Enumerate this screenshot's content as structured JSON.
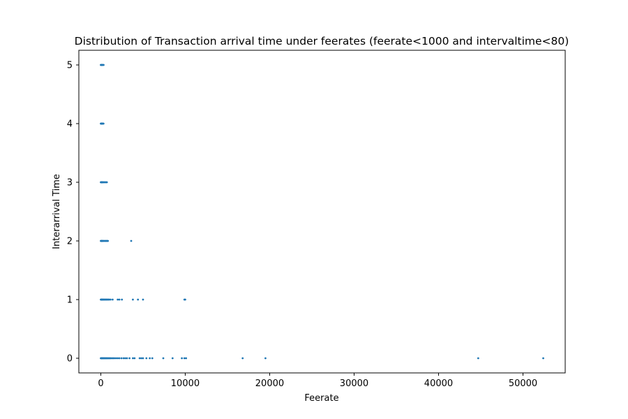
{
  "chart_data": {
    "type": "scatter",
    "title": "Distribution of Transaction arrival time under feerates (feerate<1000 and intervaltime<80)",
    "xlabel": "Feerate",
    "ylabel": "Interarrival Time",
    "xlim": [
      -2600,
      55000
    ],
    "ylim": [
      -0.25,
      5.25
    ],
    "xticks": [
      0,
      10000,
      20000,
      30000,
      40000,
      50000
    ],
    "yticks": [
      0,
      1,
      2,
      3,
      4,
      5
    ],
    "grid": false,
    "color": "#1f77b4",
    "series": [
      {
        "points": [
          [
            0,
            5
          ],
          [
            40,
            5
          ],
          [
            80,
            5
          ],
          [
            120,
            5
          ],
          [
            160,
            5
          ],
          [
            200,
            5
          ],
          [
            260,
            5
          ],
          [
            330,
            5
          ],
          [
            0,
            4
          ],
          [
            40,
            4
          ],
          [
            80,
            4
          ],
          [
            120,
            4
          ],
          [
            160,
            4
          ],
          [
            200,
            4
          ],
          [
            260,
            4
          ],
          [
            320,
            4
          ],
          [
            0,
            3
          ],
          [
            40,
            3
          ],
          [
            80,
            3
          ],
          [
            120,
            3
          ],
          [
            160,
            3
          ],
          [
            200,
            3
          ],
          [
            260,
            3
          ],
          [
            330,
            3
          ],
          [
            420,
            3
          ],
          [
            520,
            3
          ],
          [
            620,
            3
          ],
          [
            720,
            3
          ],
          [
            0,
            2
          ],
          [
            40,
            2
          ],
          [
            80,
            2
          ],
          [
            120,
            2
          ],
          [
            160,
            2
          ],
          [
            200,
            2
          ],
          [
            260,
            2
          ],
          [
            330,
            2
          ],
          [
            420,
            2
          ],
          [
            520,
            2
          ],
          [
            600,
            2
          ],
          [
            680,
            2
          ],
          [
            760,
            2
          ],
          [
            840,
            2
          ],
          [
            3600,
            2
          ],
          [
            0,
            1
          ],
          [
            50,
            1
          ],
          [
            100,
            1
          ],
          [
            150,
            1
          ],
          [
            200,
            1
          ],
          [
            260,
            1
          ],
          [
            330,
            1
          ],
          [
            400,
            1
          ],
          [
            480,
            1
          ],
          [
            560,
            1
          ],
          [
            640,
            1
          ],
          [
            720,
            1
          ],
          [
            800,
            1
          ],
          [
            900,
            1
          ],
          [
            1000,
            1
          ],
          [
            1150,
            1
          ],
          [
            1400,
            1
          ],
          [
            2000,
            1
          ],
          [
            2200,
            1
          ],
          [
            2500,
            1
          ],
          [
            3800,
            1
          ],
          [
            4400,
            1
          ],
          [
            5000,
            1
          ],
          [
            9900,
            1
          ],
          [
            10000,
            1
          ],
          [
            0,
            0
          ],
          [
            60,
            0
          ],
          [
            120,
            0
          ],
          [
            180,
            0
          ],
          [
            240,
            0
          ],
          [
            300,
            0
          ],
          [
            370,
            0
          ],
          [
            440,
            0
          ],
          [
            520,
            0
          ],
          [
            600,
            0
          ],
          [
            680,
            0
          ],
          [
            760,
            0
          ],
          [
            850,
            0
          ],
          [
            950,
            0
          ],
          [
            1050,
            0
          ],
          [
            1150,
            0
          ],
          [
            1300,
            0
          ],
          [
            1450,
            0
          ],
          [
            1600,
            0
          ],
          [
            1800,
            0
          ],
          [
            2000,
            0
          ],
          [
            2200,
            0
          ],
          [
            2450,
            0
          ],
          [
            2700,
            0
          ],
          [
            2900,
            0
          ],
          [
            3100,
            0
          ],
          [
            3400,
            0
          ],
          [
            3800,
            0
          ],
          [
            4000,
            0
          ],
          [
            4600,
            0
          ],
          [
            4800,
            0
          ],
          [
            5000,
            0
          ],
          [
            5400,
            0
          ],
          [
            5800,
            0
          ],
          [
            6100,
            0
          ],
          [
            7400,
            0
          ],
          [
            8500,
            0
          ],
          [
            9600,
            0
          ],
          [
            9900,
            0
          ],
          [
            10100,
            0
          ],
          [
            16800,
            0
          ],
          [
            19500,
            0
          ],
          [
            44700,
            0
          ],
          [
            52400,
            0
          ]
        ]
      }
    ]
  }
}
